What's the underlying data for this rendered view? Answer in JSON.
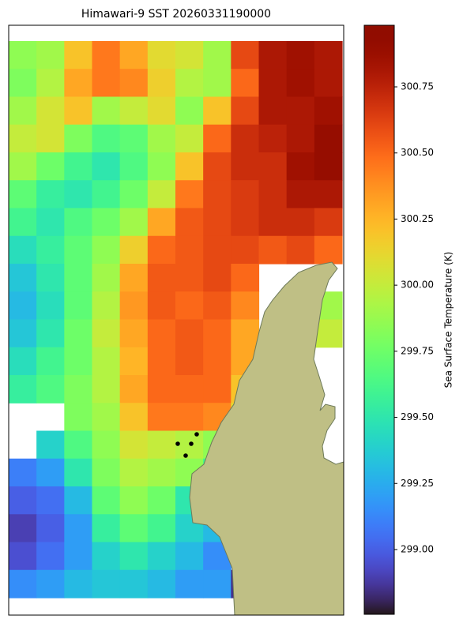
{
  "chart_data": {
    "type": "heatmap",
    "title": "Himawari-9 SST 20260331190000",
    "colorbar_label": "Sea Surface Temperature (K)",
    "colormap": "turbo",
    "clim": [
      298.755,
      300.983
    ],
    "colorbar_ticks": [
      {
        "value": 299,
        "label": "299.00"
      },
      {
        "value": 299.25,
        "label": "299.25"
      },
      {
        "value": 299.5,
        "label": "299.50"
      },
      {
        "value": 299.75,
        "label": "299.75"
      },
      {
        "value": 300,
        "label": "300.00"
      },
      {
        "value": 300.25,
        "label": "300.25"
      },
      {
        "value": 300.5,
        "label": "300.50"
      },
      {
        "value": 300.75,
        "label": "300.75"
      }
    ],
    "values": [
      [
        299.85,
        299.9,
        300.2,
        300.45,
        300.3,
        300.1,
        300.05,
        299.9,
        300.6,
        300.8,
        300.85,
        300.8
      ],
      [
        299.8,
        299.95,
        300.3,
        300.45,
        300.4,
        300.15,
        299.95,
        299.9,
        300.5,
        300.8,
        300.85,
        300.8
      ],
      [
        299.9,
        300.05,
        300.2,
        299.9,
        300.0,
        300.1,
        299.85,
        300.2,
        300.6,
        300.8,
        300.8,
        300.85
      ],
      [
        300.0,
        300.05,
        299.8,
        299.65,
        299.7,
        299.9,
        300.0,
        300.5,
        300.7,
        300.75,
        300.8,
        300.9
      ],
      [
        299.9,
        299.75,
        299.6,
        299.5,
        299.65,
        299.85,
        300.2,
        300.6,
        300.7,
        300.7,
        300.85,
        300.9
      ],
      [
        299.7,
        299.55,
        299.5,
        299.6,
        299.75,
        300.0,
        300.45,
        300.6,
        300.65,
        300.7,
        300.8,
        300.8
      ],
      [
        299.6,
        299.5,
        299.65,
        299.75,
        299.9,
        300.3,
        300.55,
        300.6,
        300.65,
        300.7,
        300.7,
        300.65
      ],
      [
        299.45,
        299.55,
        299.7,
        299.85,
        300.15,
        300.5,
        300.55,
        300.6,
        300.6,
        300.55,
        300.6,
        300.5
      ],
      [
        299.35,
        299.5,
        299.7,
        299.9,
        300.3,
        300.55,
        300.55,
        300.6,
        300.5,
        null,
        null,
        null
      ],
      [
        299.3,
        299.45,
        299.7,
        299.95,
        300.35,
        300.55,
        300.5,
        300.55,
        300.4,
        null,
        null,
        299.9
      ],
      [
        299.35,
        299.5,
        299.75,
        300.0,
        300.3,
        300.5,
        300.55,
        300.5,
        300.3,
        null,
        null,
        300.0
      ],
      [
        299.45,
        299.6,
        299.75,
        299.95,
        300.25,
        300.5,
        300.55,
        300.5,
        300.3,
        null,
        null,
        null
      ],
      [
        299.55,
        299.65,
        299.8,
        299.95,
        300.3,
        300.5,
        300.5,
        300.5,
        300.2,
        null,
        null,
        null
      ],
      [
        null,
        null,
        299.8,
        299.9,
        300.2,
        300.45,
        300.45,
        300.4,
        300.1,
        null,
        null,
        null
      ],
      [
        null,
        299.4,
        299.65,
        299.85,
        300.05,
        300.0,
        299.95,
        299.85,
        null,
        null,
        null,
        null
      ],
      [
        299.1,
        299.2,
        299.5,
        299.8,
        299.95,
        299.9,
        299.85,
        299.6,
        null,
        null,
        null,
        null
      ],
      [
        299.0,
        299.05,
        299.3,
        299.7,
        299.85,
        299.75,
        299.5,
        null,
        null,
        null,
        null,
        null
      ],
      [
        298.9,
        299.0,
        299.2,
        299.55,
        299.7,
        299.6,
        299.4,
        299.3,
        null,
        null,
        null,
        null
      ],
      [
        298.95,
        299.05,
        299.2,
        299.4,
        299.5,
        299.4,
        299.3,
        299.15,
        null,
        null,
        null,
        null
      ],
      [
        299.15,
        299.2,
        299.3,
        299.35,
        299.35,
        299.3,
        299.2,
        299.2,
        298.85,
        null,
        null,
        null
      ]
    ]
  }
}
